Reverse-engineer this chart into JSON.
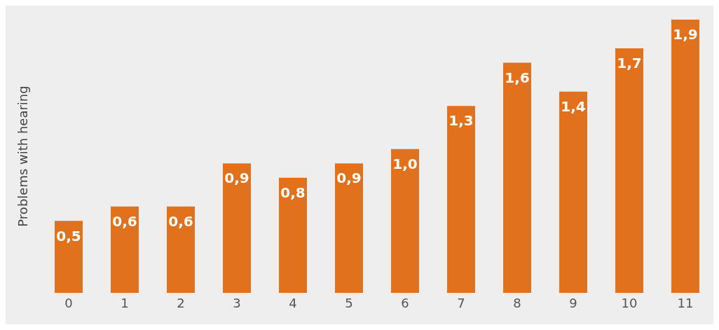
{
  "chart_data": {
    "type": "bar",
    "ylabel": "Problems with hearing",
    "categories": [
      "0",
      "1",
      "2",
      "3",
      "4",
      "5",
      "6",
      "7",
      "8",
      "9",
      "10",
      "11"
    ],
    "values": [
      0.5,
      0.6,
      0.6,
      0.9,
      0.8,
      0.9,
      1.0,
      1.3,
      1.6,
      1.4,
      1.7,
      1.9
    ],
    "value_labels": [
      "0,5",
      "0,6",
      "0,6",
      "0,9",
      "0,8",
      "0,9",
      "1,0",
      "1,3",
      "1,6",
      "1,4",
      "1,7",
      "1,9"
    ],
    "color": "#e2711d",
    "grid": false
  }
}
